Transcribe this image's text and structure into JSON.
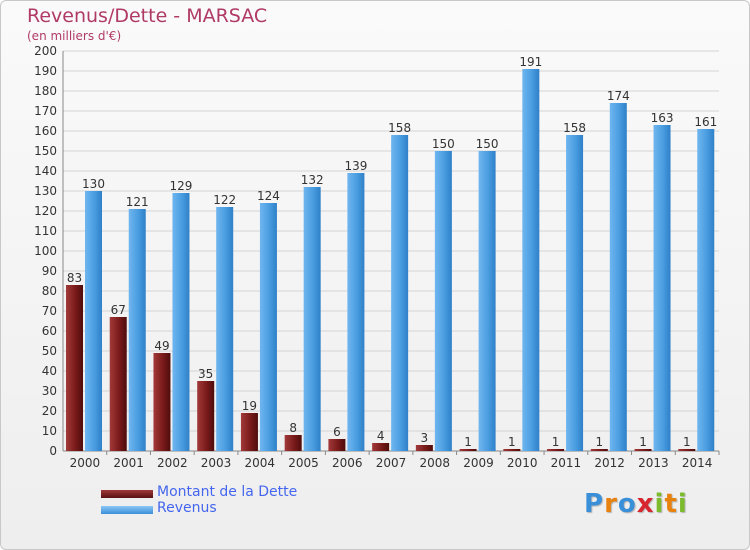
{
  "chart_data": {
    "type": "bar",
    "title": "Revenus/Dette - MARSAC",
    "subtitle": "(en milliers d'€)",
    "categories": [
      "2000",
      "2001",
      "2002",
      "2003",
      "2004",
      "2005",
      "2006",
      "2007",
      "2008",
      "2009",
      "2010",
      "2011",
      "2012",
      "2013",
      "2014"
    ],
    "series": [
      {
        "name": "Montant de la Dette",
        "values": [
          83,
          67,
          49,
          35,
          19,
          8,
          6,
          4,
          3,
          1,
          1,
          1,
          1,
          1,
          1
        ],
        "color": "#7a1a1a"
      },
      {
        "name": "Revenus",
        "values": [
          130,
          121,
          129,
          122,
          124,
          132,
          139,
          158,
          150,
          150,
          191,
          158,
          174,
          163,
          161
        ],
        "color": "#4a9de0"
      }
    ],
    "ylim": [
      0,
      200
    ],
    "yticks": [
      0,
      10,
      20,
      30,
      40,
      50,
      60,
      70,
      80,
      90,
      100,
      110,
      120,
      130,
      140,
      150,
      160,
      170,
      180,
      190,
      200
    ],
    "grid": true,
    "legend_position": "bottom-left"
  },
  "branding": {
    "logo_letters": [
      "P",
      "r",
      "o",
      "x",
      "i",
      "t",
      "i"
    ],
    "logo_colors": [
      "#3a8fd9",
      "#e8820f",
      "#3a8fd9",
      "#d8262f",
      "#7dbb2e",
      "#e8820f",
      "#7dbb2e"
    ]
  }
}
